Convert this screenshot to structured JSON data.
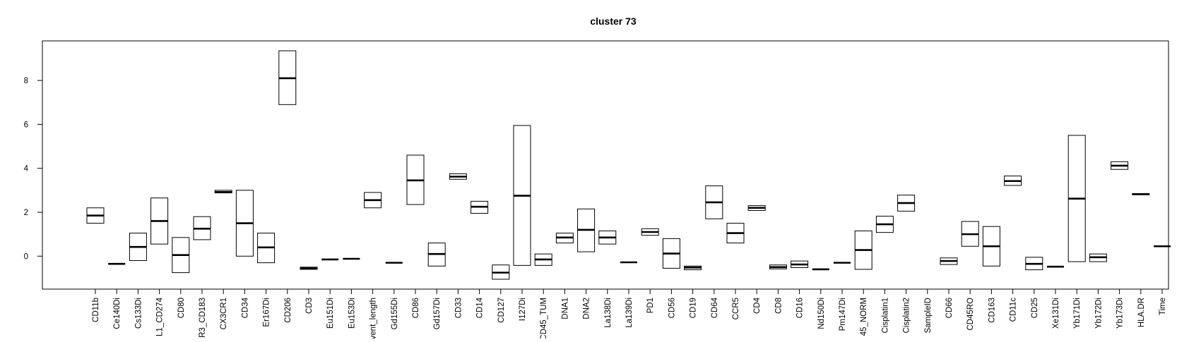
{
  "chart_data": {
    "type": "boxplot",
    "title": "cluster 73",
    "xlabel": "",
    "ylabel": "",
    "ylim": [
      -1.5,
      9.8
    ],
    "yticks": [
      0,
      2,
      4,
      6,
      8
    ],
    "grid": false,
    "legend": "none",
    "categories": [
      "CD11b",
      "Ce140Di",
      "Cs133Di",
      "L1_CD274",
      "CD80",
      "R3_CD183",
      "CX3CR1",
      "CD34",
      "Er167Di",
      "CD206",
      "CD3",
      "Eu151Di",
      "Eu153Di",
      "vent_length",
      "Gd155Di",
      "CD86",
      "Gd157Di",
      "CD33",
      "CD14",
      "CD127",
      "I127Di",
      "CD45_TUM",
      "DNA1",
      "DNA2",
      "La138Di",
      "La139Di",
      "PD1",
      "CD56",
      "CD19",
      "CD64",
      "CCR5",
      "CD4",
      "CD8",
      "CD16",
      "Nd150Di",
      "Pm147Di",
      "45_NORM",
      "Cisplatin1",
      "Cisplatin2",
      "SampleID",
      "CD66",
      "CD45RO",
      "CD163",
      "CD11c",
      "CD25",
      "Xe131Di",
      "Yb171Di",
      "Yb172Di",
      "Yb173Di",
      "HLA.DR",
      "Time"
    ],
    "boxes": [
      {
        "q1": 1.5,
        "median": 1.85,
        "q3": 2.2
      },
      {
        "q1": -0.35,
        "median": -0.35,
        "q3": -0.35
      },
      {
        "q1": -0.2,
        "median": 0.42,
        "q3": 1.05
      },
      {
        "q1": 0.55,
        "median": 1.6,
        "q3": 2.65
      },
      {
        "q1": -0.75,
        "median": 0.05,
        "q3": 0.85
      },
      {
        "q1": 0.75,
        "median": 1.25,
        "q3": 1.8
      },
      {
        "q1": 2.88,
        "median": 2.92,
        "q3": 3.0
      },
      {
        "q1": 0.0,
        "median": 1.5,
        "q3": 3.0
      },
      {
        "q1": -0.3,
        "median": 0.4,
        "q3": 1.05
      },
      {
        "q1": 6.9,
        "median": 8.1,
        "q3": 9.35
      },
      {
        "q1": -0.6,
        "median": -0.55,
        "q3": -0.5
      },
      {
        "q1": -0.15,
        "median": -0.15,
        "q3": -0.15
      },
      {
        "q1": -0.12,
        "median": -0.12,
        "q3": -0.12
      },
      {
        "q1": 2.2,
        "median": 2.55,
        "q3": 2.9
      },
      {
        "q1": -0.3,
        "median": -0.3,
        "q3": -0.3
      },
      {
        "q1": 2.35,
        "median": 3.45,
        "q3": 4.6
      },
      {
        "q1": -0.45,
        "median": 0.1,
        "q3": 0.6
      },
      {
        "q1": 3.5,
        "median": 3.62,
        "q3": 3.75
      },
      {
        "q1": 1.95,
        "median": 2.25,
        "q3": 2.5
      },
      {
        "q1": -1.05,
        "median": -0.75,
        "q3": -0.4
      },
      {
        "q1": -0.42,
        "median": 2.75,
        "q3": 5.95
      },
      {
        "q1": -0.42,
        "median": -0.15,
        "q3": 0.1
      },
      {
        "q1": 0.6,
        "median": 0.85,
        "q3": 1.05
      },
      {
        "q1": 0.2,
        "median": 1.2,
        "q3": 2.15
      },
      {
        "q1": 0.55,
        "median": 0.85,
        "q3": 1.15
      },
      {
        "q1": -0.28,
        "median": -0.28,
        "q3": -0.28
      },
      {
        "q1": 0.95,
        "median": 1.1,
        "q3": 1.25
      },
      {
        "q1": -0.55,
        "median": 0.12,
        "q3": 0.8
      },
      {
        "q1": -0.62,
        "median": -0.52,
        "q3": -0.45
      },
      {
        "q1": 1.7,
        "median": 2.45,
        "q3": 3.2
      },
      {
        "q1": 0.6,
        "median": 1.05,
        "q3": 1.5
      },
      {
        "q1": 2.08,
        "median": 2.2,
        "q3": 2.3
      },
      {
        "q1": -0.58,
        "median": -0.5,
        "q3": -0.4
      },
      {
        "q1": -0.52,
        "median": -0.38,
        "q3": -0.22
      },
      {
        "q1": -0.6,
        "median": -0.6,
        "q3": -0.6
      },
      {
        "q1": -0.3,
        "median": -0.3,
        "q3": -0.3
      },
      {
        "q1": -0.6,
        "median": 0.28,
        "q3": 1.15
      },
      {
        "q1": 1.08,
        "median": 1.45,
        "q3": 1.82
      },
      {
        "q1": 2.05,
        "median": 2.42,
        "q3": 2.78
      },
      null,
      {
        "q1": -0.38,
        "median": -0.22,
        "q3": -0.08
      },
      {
        "q1": 0.45,
        "median": 1.0,
        "q3": 1.58
      },
      {
        "q1": -0.45,
        "median": 0.45,
        "q3": 1.35
      },
      {
        "q1": 3.22,
        "median": 3.42,
        "q3": 3.65
      },
      {
        "q1": -0.62,
        "median": -0.35,
        "q3": -0.05
      },
      {
        "q1": -0.48,
        "median": -0.48,
        "q3": -0.48
      },
      {
        "q1": -0.25,
        "median": 2.62,
        "q3": 5.5
      },
      {
        "q1": -0.25,
        "median": -0.05,
        "q3": 0.1
      },
      {
        "q1": 3.95,
        "median": 4.12,
        "q3": 4.3
      },
      {
        "q1": 2.8,
        "median": 2.82,
        "q3": 2.85
      },
      {
        "q1": 0.45,
        "median": 0.45,
        "q3": 0.45
      }
    ]
  }
}
